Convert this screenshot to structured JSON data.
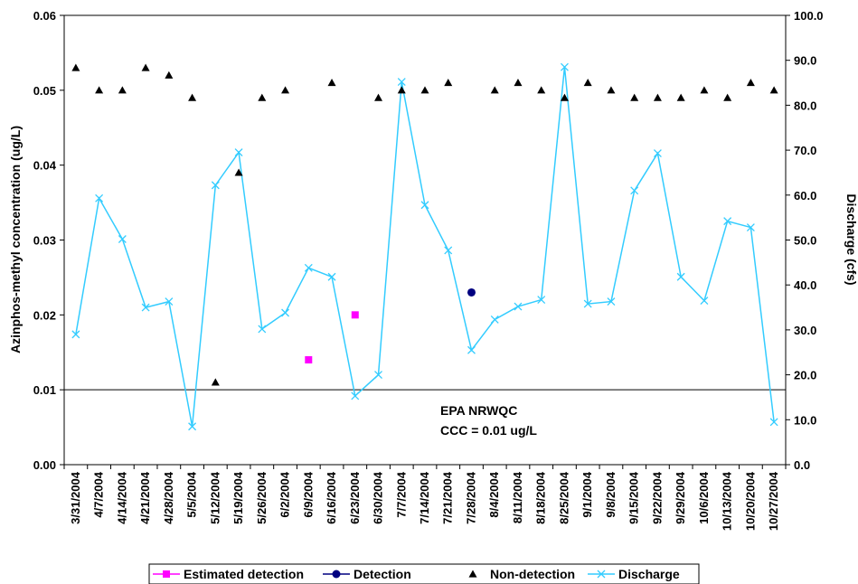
{
  "chart_data": {
    "type": "line",
    "x_categories": [
      "3/31/2004",
      "4/7/2004",
      "4/14/2004",
      "4/21/2004",
      "4/28/2004",
      "5/5/2004",
      "5/12/2004",
      "5/19/2004",
      "5/26/2004",
      "6/2/2004",
      "6/9/2004",
      "6/16/2004",
      "6/23/2004",
      "6/30/2004",
      "7/7/2004",
      "7/14/2004",
      "7/21/2004",
      "7/28/2004",
      "8/4/2004",
      "8/11/2004",
      "8/18/2004",
      "8/25/2004",
      "9/1/2004",
      "9/8/2004",
      "9/15/2004",
      "9/22/2004",
      "9/29/2004",
      "10/6/2004",
      "10/13/2004",
      "10/20/2004",
      "10/27/2004"
    ],
    "y_left": {
      "label": "Azinphos-methyl concentration (ug/L)",
      "range": [
        0,
        0.06
      ],
      "ticks": [
        "0.00",
        "0.01",
        "0.02",
        "0.03",
        "0.04",
        "0.05",
        "0.06"
      ]
    },
    "y_right": {
      "label": "Discharge (cfs)",
      "range": [
        0,
        100
      ],
      "ticks": [
        "0.0",
        "10.0",
        "20.0",
        "30.0",
        "40.0",
        "50.0",
        "60.0",
        "70.0",
        "80.0",
        "90.0",
        "100.0"
      ]
    },
    "series": [
      {
        "name": "Estimated detection",
        "axis": "left",
        "color": "#ff00ff",
        "marker": "square",
        "points": [
          {
            "x": "6/9/2004",
            "y": 0.014
          },
          {
            "x": "6/23/2004",
            "y": 0.02
          }
        ]
      },
      {
        "name": "Detection",
        "axis": "left",
        "color": "#000080",
        "marker": "circle",
        "points": [
          {
            "x": "7/28/2004",
            "y": 0.023
          }
        ]
      },
      {
        "name": "Non-detection",
        "axis": "left",
        "color": "#000000",
        "marker": "triangle",
        "points": [
          {
            "x": "3/31/2004",
            "y": 0.053
          },
          {
            "x": "4/7/2004",
            "y": 0.05
          },
          {
            "x": "4/14/2004",
            "y": 0.05
          },
          {
            "x": "4/21/2004",
            "y": 0.053
          },
          {
            "x": "4/28/2004",
            "y": 0.052
          },
          {
            "x": "5/5/2004",
            "y": 0.049
          },
          {
            "x": "5/12/2004",
            "y": 0.011
          },
          {
            "x": "5/19/2004",
            "y": 0.039
          },
          {
            "x": "5/26/2004",
            "y": 0.049
          },
          {
            "x": "6/2/2004",
            "y": 0.05
          },
          {
            "x": "6/16/2004",
            "y": 0.051
          },
          {
            "x": "6/30/2004",
            "y": 0.049
          },
          {
            "x": "7/7/2004",
            "y": 0.05
          },
          {
            "x": "7/14/2004",
            "y": 0.05
          },
          {
            "x": "7/21/2004",
            "y": 0.051
          },
          {
            "x": "8/4/2004",
            "y": 0.05
          },
          {
            "x": "8/11/2004",
            "y": 0.051
          },
          {
            "x": "8/18/2004",
            "y": 0.05
          },
          {
            "x": "8/25/2004",
            "y": 0.049
          },
          {
            "x": "9/1/2004",
            "y": 0.051
          },
          {
            "x": "9/8/2004",
            "y": 0.05
          },
          {
            "x": "9/15/2004",
            "y": 0.049
          },
          {
            "x": "9/22/2004",
            "y": 0.049
          },
          {
            "x": "9/29/2004",
            "y": 0.049
          },
          {
            "x": "10/6/2004",
            "y": 0.05
          },
          {
            "x": "10/13/2004",
            "y": 0.049
          },
          {
            "x": "10/20/2004",
            "y": 0.051
          },
          {
            "x": "10/27/2004",
            "y": 0.05
          }
        ]
      },
      {
        "name": "Discharge",
        "axis": "right",
        "color": "#33ccff",
        "marker": "x",
        "line": true,
        "values": [
          29.0,
          59.3,
          50.2,
          35.0,
          36.3,
          8.5,
          62.2,
          69.5,
          30.2,
          33.8,
          43.8,
          41.8,
          15.3,
          20.0,
          85.2,
          57.8,
          47.7,
          25.5,
          32.3,
          35.2,
          36.7,
          88.5,
          35.8,
          36.3,
          61.0,
          69.3,
          41.8,
          36.5,
          54.2,
          52.8,
          9.5
        ]
      }
    ],
    "reference_line": {
      "axis": "left",
      "y": 0.01,
      "color": "#000000",
      "annotation": [
        "EPA NRWQC",
        "CCC = 0.01 ug/L"
      ]
    },
    "grid": false,
    "legend": {
      "position": "bottom",
      "items": [
        "Estimated detection",
        "Detection",
        "Non-detection",
        "Discharge"
      ]
    }
  }
}
